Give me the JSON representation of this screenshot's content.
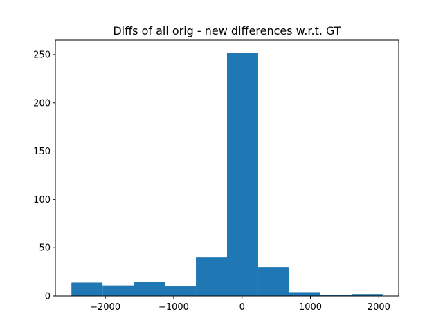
{
  "chart_data": {
    "type": "bar",
    "title": "Diffs of all orig - new differences w.r.t. GT",
    "xlabel": "",
    "ylabel": "",
    "xlim": [
      -2730,
      2290
    ],
    "ylim": [
      0,
      265
    ],
    "bar_color": "#1f77b4",
    "grid": false,
    "legend": "none",
    "bins": [
      {
        "x0": -2495,
        "x1": -2040,
        "count": 14
      },
      {
        "x0": -2040,
        "x1": -1585,
        "count": 11
      },
      {
        "x0": -1585,
        "x1": -1130,
        "count": 15
      },
      {
        "x0": -1130,
        "x1": -675,
        "count": 10
      },
      {
        "x0": -675,
        "x1": -220,
        "count": 40
      },
      {
        "x0": -220,
        "x1": 235,
        "count": 252
      },
      {
        "x0": 235,
        "x1": 690,
        "count": 30
      },
      {
        "x0": 690,
        "x1": 1145,
        "count": 4
      },
      {
        "x0": 1145,
        "x1": 1600,
        "count": 1
      },
      {
        "x0": 1600,
        "x1": 2055,
        "count": 2
      }
    ],
    "x_ticks": [
      {
        "value": -2000,
        "label": "−2000"
      },
      {
        "value": -1000,
        "label": "−1000"
      },
      {
        "value": 0,
        "label": "0"
      },
      {
        "value": 1000,
        "label": "1000"
      },
      {
        "value": 2000,
        "label": "2000"
      }
    ],
    "y_ticks": [
      {
        "value": 0,
        "label": "0"
      },
      {
        "value": 50,
        "label": "50"
      },
      {
        "value": 100,
        "label": "100"
      },
      {
        "value": 150,
        "label": "150"
      },
      {
        "value": 200,
        "label": "200"
      },
      {
        "value": 250,
        "label": "250"
      }
    ]
  }
}
